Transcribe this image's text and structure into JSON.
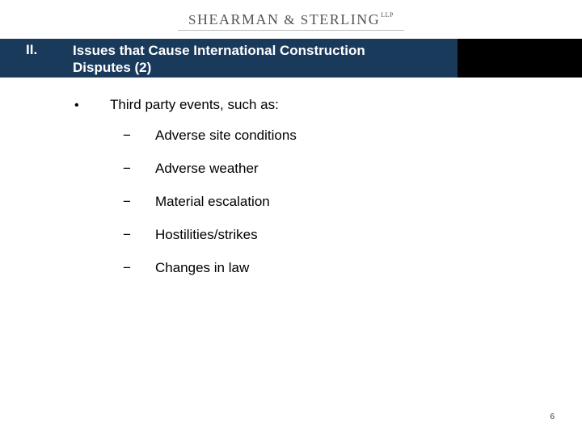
{
  "logo": {
    "firm_name_html": "S<span class=\"logo-caps\">HEARMAN</span> &amp; S<span class=\"logo-caps\">TERLING</span><span class=\"logo-llp\">LLP</span>",
    "underline_color": "#bbbbbb",
    "text_color": "#555555"
  },
  "title": {
    "numeral": "II.",
    "text": "Issues that Cause International Construction Disputes (2)",
    "blue_bg": "#1a3a5c",
    "black_bg": "#000000",
    "title_fontsize": 17,
    "title_color": "#ffffff"
  },
  "content": {
    "bullet_marker": "•",
    "bullet_label": "Third party events, such as:",
    "sub_marker": "−",
    "fontsize": 17,
    "text_color": "#000000",
    "sub_items": [
      "Adverse site conditions",
      "Adverse weather",
      "Material escalation",
      "Hostilities/strikes",
      "Changes in law"
    ]
  },
  "page_number": "6",
  "background_color": "#ffffff"
}
